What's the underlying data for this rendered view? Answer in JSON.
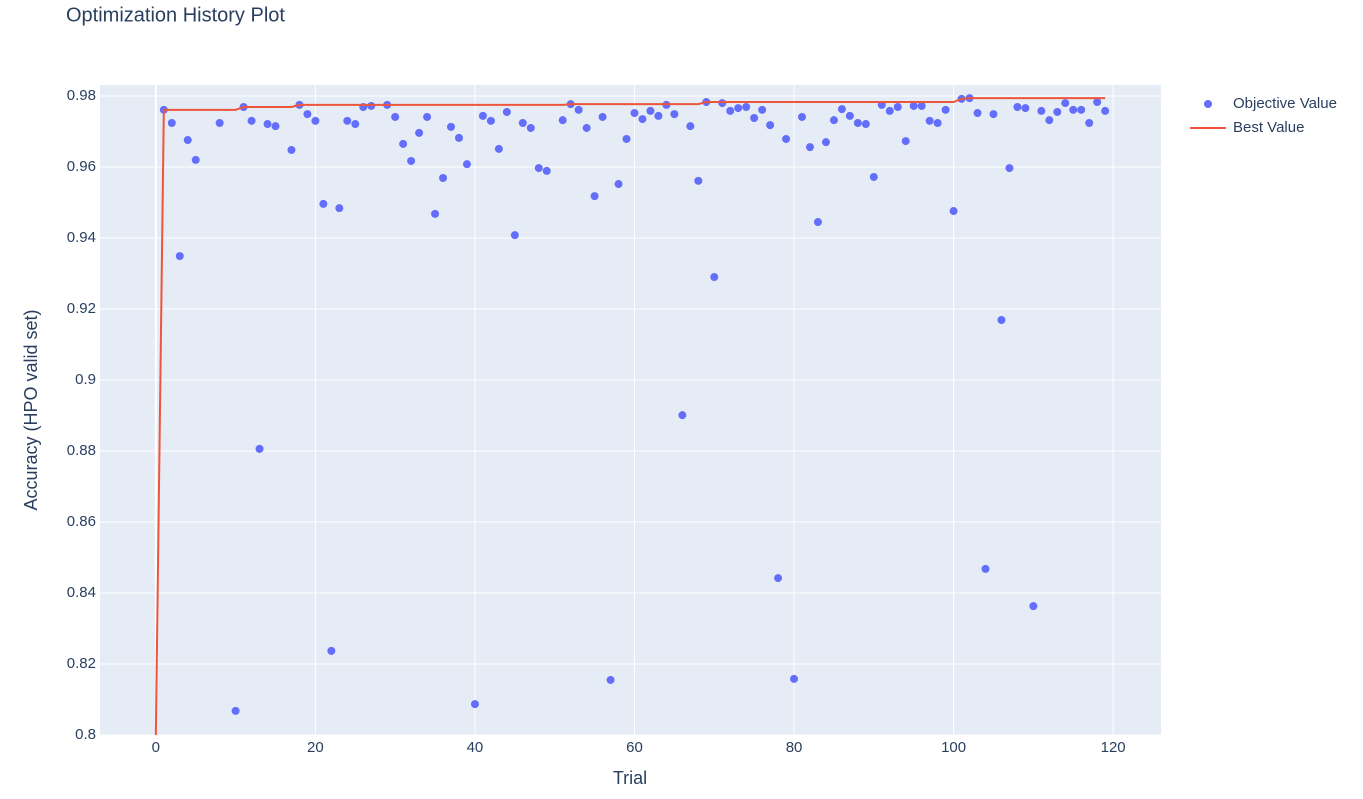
{
  "chart_data": {
    "type": "scatter",
    "title": "Optimization History Plot",
    "x_label": "Trial",
    "y_label": "Accuracy (HPO valid set)",
    "x": [
      0,
      1,
      2,
      3,
      4,
      5,
      6,
      7,
      8,
      9,
      10,
      11,
      12,
      13,
      14,
      15,
      16,
      17,
      18,
      19,
      20,
      21,
      22,
      23,
      24,
      25,
      26,
      27,
      28,
      29,
      30,
      31,
      32,
      33,
      34,
      35,
      36,
      37,
      38,
      39,
      40,
      41,
      42,
      43,
      44,
      45,
      46,
      47,
      48,
      49,
      50,
      51,
      52,
      53,
      54,
      55,
      56,
      57,
      58,
      59,
      60,
      61,
      62,
      63,
      64,
      65,
      66,
      67,
      68,
      69,
      70,
      71,
      72,
      73,
      74,
      75,
      76,
      77,
      78,
      79,
      80,
      81,
      82,
      83,
      84,
      85,
      86,
      87,
      88,
      89,
      90,
      91,
      92,
      93,
      94,
      95,
      96,
      97,
      98,
      99,
      100,
      101,
      102,
      103,
      104,
      105,
      106,
      107,
      108,
      109,
      110,
      111,
      112,
      113,
      114,
      115,
      116,
      117,
      118,
      119
    ],
    "series": [
      {
        "name": "Objective Value",
        "color": "#636efa",
        "mode": "markers",
        "values": [
          null,
          0.9761,
          0.9724,
          0.9349,
          0.9676,
          0.962,
          null,
          null,
          0.9724,
          null,
          0.8068,
          0.9769,
          0.973,
          0.8806,
          0.9721,
          0.9715,
          null,
          0.9648,
          0.9775,
          0.9749,
          0.973,
          0.9496,
          0.8237,
          0.9484,
          0.973,
          0.9721,
          0.9769,
          0.9772,
          null,
          0.9775,
          0.9741,
          0.9665,
          0.9617,
          0.9696,
          0.9741,
          0.9468,
          0.9569,
          0.9713,
          0.9682,
          0.9608,
          0.8087,
          0.9744,
          0.973,
          0.9651,
          0.9755,
          0.9408,
          0.9724,
          0.971,
          0.9597,
          0.9589,
          null,
          0.9732,
          0.9777,
          0.9761,
          0.971,
          0.9518,
          0.9741,
          0.8155,
          0.9552,
          0.9679,
          0.9752,
          0.9735,
          0.9758,
          0.9744,
          0.9775,
          0.9749,
          0.8901,
          0.9715,
          0.9561,
          0.9783,
          0.929,
          0.978,
          0.9758,
          0.9766,
          0.9769,
          0.9738,
          0.9761,
          0.9718,
          0.8442,
          0.9679,
          0.8158,
          0.9741,
          0.9656,
          0.9445,
          0.967,
          0.9732,
          0.9763,
          0.9744,
          0.9724,
          0.9721,
          0.9572,
          0.9775,
          0.9758,
          0.9769,
          0.9673,
          0.9772,
          0.9772,
          0.973,
          0.9724,
          0.9761,
          0.9476,
          0.9792,
          0.9794,
          0.9752,
          0.8468,
          0.9749,
          0.9169,
          0.9597,
          0.9769,
          0.9766,
          0.8363,
          0.9758,
          0.9732,
          0.9755,
          0.978,
          0.9761,
          0.9761,
          0.9724,
          0.9783,
          0.9758
        ]
      },
      {
        "name": "Best Value",
        "color": "#ef553b",
        "mode": "lines",
        "values": [
          0.8,
          0.9761,
          0.9761,
          0.9761,
          0.9761,
          0.9761,
          0.9761,
          0.9761,
          0.9761,
          0.9761,
          0.9761,
          0.9769,
          0.9769,
          0.9769,
          0.9769,
          0.9769,
          0.9769,
          0.9769,
          0.9775,
          0.9775,
          0.9775,
          0.9775,
          0.9775,
          0.9775,
          0.9775,
          0.9775,
          0.9775,
          0.9775,
          0.9775,
          0.9775,
          0.9775,
          0.9775,
          0.9775,
          0.9775,
          0.9775,
          0.9775,
          0.9775,
          0.9775,
          0.9775,
          0.9775,
          0.9775,
          0.9775,
          0.9775,
          0.9775,
          0.9775,
          0.9775,
          0.9775,
          0.9775,
          0.9775,
          0.9775,
          0.9775,
          0.9775,
          0.9777,
          0.9777,
          0.9777,
          0.9777,
          0.9777,
          0.9777,
          0.9777,
          0.9777,
          0.9777,
          0.9777,
          0.9777,
          0.9777,
          0.9777,
          0.9777,
          0.9777,
          0.9777,
          0.9777,
          0.9783,
          0.9783,
          0.9783,
          0.9783,
          0.9783,
          0.9783,
          0.9783,
          0.9783,
          0.9783,
          0.9783,
          0.9783,
          0.9783,
          0.9783,
          0.9783,
          0.9783,
          0.9783,
          0.9783,
          0.9783,
          0.9783,
          0.9783,
          0.9783,
          0.9783,
          0.9783,
          0.9783,
          0.9783,
          0.9783,
          0.9783,
          0.9783,
          0.9783,
          0.9783,
          0.9783,
          0.9783,
          0.9792,
          0.9794,
          0.9794,
          0.9794,
          0.9794,
          0.9794,
          0.9794,
          0.9794,
          0.9794,
          0.9794,
          0.9794,
          0.9794,
          0.9794,
          0.9794,
          0.9794,
          0.9794,
          0.9794,
          0.9794,
          0.9794
        ]
      }
    ],
    "xlim": [
      -7,
      126
    ],
    "ylim": [
      0.8,
      0.9831
    ],
    "xticks": [
      0,
      20,
      40,
      60,
      80,
      100,
      120
    ],
    "yticks": [
      0.8,
      0.82,
      0.84,
      0.86,
      0.88,
      0.9,
      0.92,
      0.94,
      0.96,
      0.98
    ],
    "grid": true,
    "legend": "right"
  }
}
